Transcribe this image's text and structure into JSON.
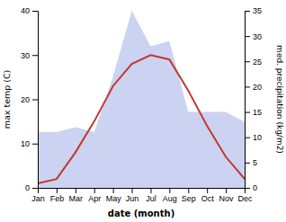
{
  "chart_data": {
    "type": "line",
    "xlabel": "date (month)",
    "ylabel": "max temp (C)",
    "y2label": "med. precipitation (kg/m2)",
    "categories": [
      "Jan",
      "Feb",
      "Mar",
      "Apr",
      "May",
      "Jun",
      "Jul",
      "Aug",
      "Sep",
      "Oct",
      "Nov",
      "Dec"
    ],
    "series": [
      {
        "type": "area",
        "axis": "y2",
        "color": "#aab4e8",
        "values": [
          11,
          11,
          12,
          11,
          22,
          35,
          28,
          29,
          15,
          15,
          15,
          13
        ]
      },
      {
        "type": "line",
        "color": "#c0392b",
        "values": [
          1,
          2,
          8,
          15,
          23,
          28,
          30,
          29,
          22,
          14,
          7,
          2
        ]
      }
    ],
    "ylim": [
      0,
      40
    ],
    "yticks": [
      0,
      10,
      20,
      30,
      40
    ],
    "y2lim": [
      0,
      35
    ],
    "y2ticks": [
      0,
      5,
      10,
      15,
      20,
      25,
      30,
      35
    ],
    "grid": false
  }
}
